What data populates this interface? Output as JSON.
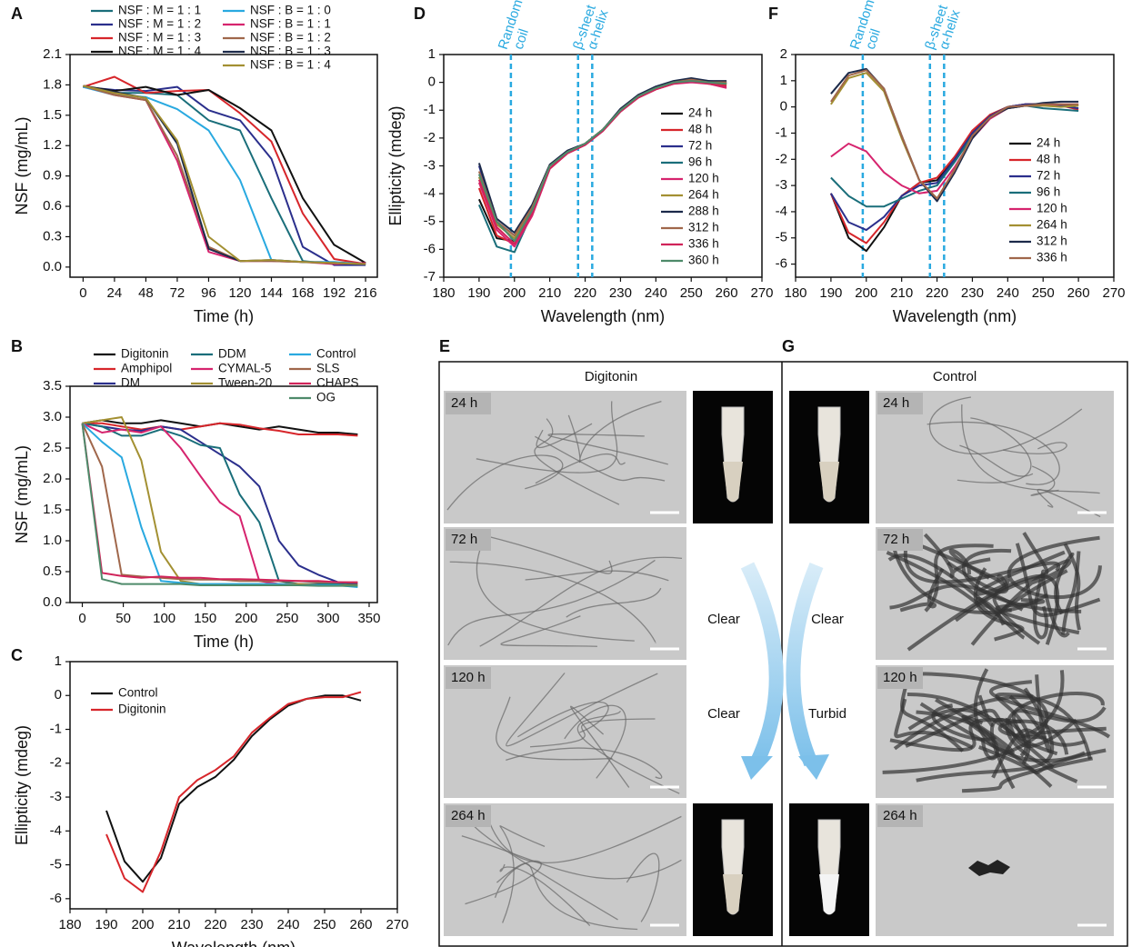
{
  "chart_data": [
    {
      "type": "line",
      "panel": "A",
      "x_label": "Time (h)",
      "y_label": "NSF (mg/mL)",
      "x": [
        0,
        24,
        48,
        72,
        96,
        120,
        144,
        168,
        192,
        216
      ],
      "xlim": [
        -10,
        225
      ],
      "xticks": [
        0,
        24,
        48,
        72,
        96,
        120,
        144,
        168,
        192,
        216
      ],
      "ylim": [
        -0.1,
        2.1
      ],
      "yticks": [
        {
          "value": 0,
          "label": "0.0"
        },
        0.3,
        0.6,
        0.9,
        1.2,
        1.5,
        1.8,
        2.1
      ],
      "series": [
        {
          "name": "NSF : M = 1 : 1",
          "color": "#1a6e7a",
          "values": [
            1.78,
            1.72,
            1.72,
            1.7,
            1.45,
            1.35,
            0.68,
            0.06,
            0.03,
            0.03
          ]
        },
        {
          "name": "NSF : M = 1 : 2",
          "color": "#2b2f8c",
          "values": [
            1.78,
            1.75,
            1.74,
            1.78,
            1.55,
            1.45,
            1.07,
            0.2,
            0.02,
            0.02
          ]
        },
        {
          "name": "NSF : M = 1 : 3",
          "color": "#d7262b",
          "values": [
            1.78,
            1.88,
            1.72,
            1.74,
            1.75,
            1.52,
            1.24,
            0.53,
            0.08,
            0.03
          ]
        },
        {
          "name": "NSF : M = 1 : 4",
          "color": "#111111",
          "values": [
            1.79,
            1.74,
            1.78,
            1.7,
            1.75,
            1.57,
            1.35,
            0.68,
            0.22,
            0.04
          ]
        },
        {
          "name": "NSF : B = 1 : 0",
          "color": "#29a9e0",
          "values": [
            1.78,
            1.7,
            1.68,
            1.56,
            1.35,
            0.86,
            0.07,
            0.05,
            0.05,
            0.03
          ]
        },
        {
          "name": "NSF : B = 1 : 1",
          "color": "#d6246e",
          "values": [
            1.79,
            1.7,
            1.65,
            1.05,
            0.15,
            0.06,
            0.06,
            0.05,
            0.03,
            0.04
          ]
        },
        {
          "name": "NSF : B = 1 : 2",
          "color": "#a0674b",
          "values": [
            1.79,
            1.7,
            1.65,
            1.1,
            0.2,
            0.06,
            0.06,
            0.05,
            0.04,
            0.03
          ]
        },
        {
          "name": "NSF : B = 1 : 3",
          "color": "#1c2a4a",
          "values": [
            1.79,
            1.73,
            1.67,
            1.22,
            0.18,
            0.06,
            0.07,
            0.05,
            0.04,
            0.03
          ]
        },
        {
          "name": "NSF : B = 1 : 4",
          "color": "#a39032",
          "values": [
            1.79,
            1.72,
            1.67,
            1.25,
            0.3,
            0.06,
            0.07,
            0.05,
            0.04,
            0.03
          ]
        }
      ]
    },
    {
      "type": "line",
      "panel": "B",
      "x_label": "Time (h)",
      "y_label": "NSF (mg/mL)",
      "x": [
        0,
        24,
        48,
        72,
        96,
        120,
        144,
        168,
        192,
        216,
        240,
        264,
        288,
        312,
        336
      ],
      "xlim": [
        -15,
        360
      ],
      "xticks": [
        0,
        50,
        100,
        150,
        200,
        250,
        300,
        350
      ],
      "ylim": [
        0,
        3.5
      ],
      "yticks": [
        {
          "value": 0,
          "label": "0.0"
        },
        0.5,
        {
          "value": 1,
          "label": "1.0"
        },
        1.5,
        {
          "value": 2,
          "label": "2.0"
        },
        2.5,
        {
          "value": 3,
          "label": "3.0"
        },
        3.5
      ],
      "series": [
        {
          "name": "Digitonin",
          "color": "#111111",
          "values": [
            2.9,
            2.95,
            2.9,
            2.9,
            2.95,
            2.9,
            2.85,
            2.9,
            2.85,
            2.8,
            2.85,
            2.8,
            2.75,
            2.75,
            2.72
          ]
        },
        {
          "name": "Amphipol",
          "color": "#d7262b",
          "values": [
            2.9,
            2.9,
            2.85,
            2.8,
            2.85,
            2.8,
            2.85,
            2.9,
            2.88,
            2.82,
            2.78,
            2.72,
            2.72,
            2.72,
            2.7
          ]
        },
        {
          "name": "DM",
          "color": "#2b2f8c",
          "values": [
            2.9,
            2.85,
            2.8,
            2.78,
            2.85,
            2.8,
            2.6,
            2.4,
            2.2,
            1.88,
            1.0,
            0.6,
            0.45,
            0.33,
            0.3
          ]
        },
        {
          "name": "DDM",
          "color": "#1a6e7a",
          "values": [
            2.9,
            2.85,
            2.7,
            2.7,
            2.8,
            2.7,
            2.55,
            2.5,
            1.75,
            1.3,
            0.35,
            0.3,
            0.3,
            0.3,
            0.28
          ]
        },
        {
          "name": "CYMAL-5",
          "color": "#d6246e",
          "values": [
            2.9,
            2.75,
            2.8,
            2.75,
            2.85,
            2.5,
            2.05,
            1.62,
            1.4,
            0.35,
            0.3,
            0.3,
            0.28,
            0.28,
            0.28
          ]
        },
        {
          "name": "Tween-20",
          "color": "#a39032",
          "values": [
            2.9,
            2.95,
            3.0,
            2.3,
            0.82,
            0.35,
            0.3,
            0.3,
            0.3,
            0.3,
            0.3,
            0.3,
            0.28,
            0.28,
            0.28
          ]
        },
        {
          "name": "Control",
          "color": "#29a9e0",
          "values": [
            2.9,
            2.6,
            2.35,
            1.22,
            0.35,
            0.32,
            0.3,
            0.3,
            0.3,
            0.3,
            0.3,
            0.28,
            0.28,
            0.28,
            0.25
          ]
        },
        {
          "name": "SLS",
          "color": "#a0674b",
          "values": [
            2.9,
            2.2,
            0.45,
            0.42,
            0.4,
            0.38,
            0.37,
            0.37,
            0.35,
            0.35,
            0.35,
            0.35,
            0.33,
            0.33,
            0.32
          ]
        },
        {
          "name": "CHAPS",
          "color": "#d0245a",
          "values": [
            2.9,
            0.48,
            0.43,
            0.4,
            0.42,
            0.4,
            0.4,
            0.38,
            0.38,
            0.37,
            0.36,
            0.35,
            0.35,
            0.33,
            0.33
          ]
        },
        {
          "name": "OG",
          "color": "#4e8a6a",
          "values": [
            2.9,
            0.38,
            0.3,
            0.3,
            0.3,
            0.3,
            0.28,
            0.28,
            0.28,
            0.28,
            0.28,
            0.28,
            0.27,
            0.27,
            0.27
          ]
        }
      ]
    },
    {
      "type": "line",
      "panel": "C",
      "x_label": "Wavelength (nm)",
      "y_label": "Ellipticity (mdeg)",
      "x": [
        190,
        195,
        200,
        205,
        210,
        215,
        220,
        225,
        230,
        235,
        240,
        245,
        250,
        255,
        260
      ],
      "xlim": [
        180,
        270
      ],
      "xticks": [
        180,
        190,
        200,
        210,
        220,
        230,
        240,
        250,
        260,
        270
      ],
      "ylim": [
        -6.3,
        1
      ],
      "yticks": [
        -6,
        -5,
        -4,
        -3,
        -2,
        -1,
        0,
        1
      ],
      "series": [
        {
          "name": "Control",
          "color": "#111111",
          "values": [
            -3.4,
            -4.9,
            -5.5,
            -4.8,
            -3.2,
            -2.7,
            -2.4,
            -1.9,
            -1.2,
            -0.7,
            -0.3,
            -0.1,
            0,
            0,
            -0.15
          ]
        },
        {
          "name": "Digitonin",
          "color": "#d7262b",
          "values": [
            -4.1,
            -5.4,
            -5.8,
            -4.6,
            -3.0,
            -2.5,
            -2.2,
            -1.8,
            -1.1,
            -0.65,
            -0.25,
            -0.1,
            -0.05,
            -0.05,
            0.1
          ]
        }
      ]
    },
    {
      "type": "line",
      "panel": "D",
      "x_label": "Wavelength (nm)",
      "y_label": "Ellipticity (mdeg)",
      "x": [
        190,
        195,
        200,
        205,
        210,
        215,
        220,
        225,
        230,
        235,
        240,
        245,
        250,
        255,
        260
      ],
      "xlim": [
        180,
        270
      ],
      "xticks": [
        180,
        190,
        200,
        210,
        220,
        230,
        240,
        250,
        260,
        270
      ],
      "ylim": [
        -7,
        1
      ],
      "yticks": [
        -7,
        -6,
        -5,
        -4,
        -3,
        -2,
        -1,
        0,
        1
      ],
      "markers": [
        {
          "value": 199,
          "label_lines": [
            "Random",
            "coil"
          ]
        },
        {
          "value": 218,
          "label_lines": [
            "β-sheet"
          ]
        },
        {
          "value": 222,
          "label_lines": [
            "α-helix"
          ]
        }
      ],
      "series": [
        {
          "name": "24 h",
          "color": "#111111",
          "values": [
            -4.2,
            -5.6,
            -5.7,
            -4.5,
            -3.0,
            -2.5,
            -2.2,
            -1.7,
            -1.0,
            -0.5,
            -0.2,
            0,
            0.05,
            0,
            -0.05
          ]
        },
        {
          "name": "48 h",
          "color": "#d7262b",
          "values": [
            -3.8,
            -5.5,
            -5.8,
            -4.6,
            -3.0,
            -2.5,
            -2.2,
            -1.7,
            -1.0,
            -0.55,
            -0.25,
            -0.05,
            0.05,
            0,
            -0.1
          ]
        },
        {
          "name": "72 h",
          "color": "#2b2f8c",
          "values": [
            -3.0,
            -5.0,
            -5.5,
            -4.5,
            -3.0,
            -2.5,
            -2.2,
            -1.7,
            -1.0,
            -0.5,
            -0.2,
            0,
            0.1,
            0.05,
            0
          ]
        },
        {
          "name": "96 h",
          "color": "#1a6e7a",
          "values": [
            -4.4,
            -5.9,
            -6.1,
            -4.7,
            -3.0,
            -2.5,
            -2.2,
            -1.7,
            -1.0,
            -0.5,
            -0.2,
            0,
            0.05,
            0,
            0
          ]
        },
        {
          "name": "120 h",
          "color": "#d6246e",
          "values": [
            -3.6,
            -5.3,
            -5.9,
            -4.8,
            -3.1,
            -2.55,
            -2.25,
            -1.75,
            -1.05,
            -0.55,
            -0.25,
            -0.05,
            0,
            -0.05,
            -0.2
          ]
        },
        {
          "name": "264 h",
          "color": "#a39032",
          "values": [
            -3.4,
            -5.1,
            -5.6,
            -4.5,
            -3.0,
            -2.5,
            -2.2,
            -1.7,
            -1.0,
            -0.5,
            -0.2,
            0,
            0.1,
            0,
            -0.05
          ]
        },
        {
          "name": "288 h",
          "color": "#1c2a4a",
          "values": [
            -2.9,
            -4.9,
            -5.4,
            -4.4,
            -2.95,
            -2.45,
            -2.2,
            -1.7,
            -0.95,
            -0.45,
            -0.15,
            0.05,
            0.15,
            0.05,
            0.05
          ]
        },
        {
          "name": "312 h",
          "color": "#a0674b",
          "values": [
            -3.2,
            -5.0,
            -5.5,
            -4.5,
            -3.0,
            -2.5,
            -2.2,
            -1.7,
            -1.0,
            -0.5,
            -0.2,
            0,
            0.1,
            0,
            0
          ]
        },
        {
          "name": "336 h",
          "color": "#d0245a",
          "values": [
            -3.5,
            -5.2,
            -5.8,
            -4.7,
            -3.1,
            -2.55,
            -2.25,
            -1.75,
            -1.05,
            -0.55,
            -0.25,
            -0.05,
            0.05,
            -0.05,
            -0.15
          ]
        },
        {
          "name": "360 h",
          "color": "#4e8a6a",
          "values": [
            -3.3,
            -5.0,
            -5.7,
            -4.6,
            -3.0,
            -2.5,
            -2.2,
            -1.7,
            -1.0,
            -0.5,
            -0.2,
            0,
            0.05,
            0,
            -0.05
          ]
        }
      ]
    },
    {
      "type": "line",
      "panel": "F",
      "x_label": "Wavelength (nm)",
      "y_label": "",
      "x": [
        190,
        195,
        200,
        205,
        210,
        215,
        220,
        225,
        230,
        235,
        240,
        245,
        250,
        255,
        260
      ],
      "xlim": [
        180,
        270
      ],
      "xticks": [
        180,
        190,
        200,
        210,
        220,
        230,
        240,
        250,
        260,
        270
      ],
      "ylim": [
        -6.5,
        2
      ],
      "yticks": [
        -6,
        -5,
        -4,
        -3,
        -2,
        -1,
        0,
        1,
        2
      ],
      "markers": [
        {
          "value": 199,
          "label_lines": [
            "Random",
            "coil"
          ]
        },
        {
          "value": 218,
          "label_lines": [
            "β-sheet"
          ]
        },
        {
          "value": 222,
          "label_lines": [
            "α-helix"
          ]
        }
      ],
      "series": [
        {
          "name": "24 h",
          "color": "#111111",
          "values": [
            -3.3,
            -5.0,
            -5.5,
            -4.6,
            -3.4,
            -2.9,
            -2.8,
            -2.0,
            -1.0,
            -0.3,
            0,
            0.1,
            0.1,
            0.1,
            0.05
          ]
        },
        {
          "name": "48 h",
          "color": "#d7262b",
          "values": [
            -3.3,
            -4.8,
            -5.2,
            -4.4,
            -3.4,
            -2.9,
            -2.7,
            -1.9,
            -0.9,
            -0.3,
            0,
            0.1,
            0.1,
            0.05,
            -0.1
          ]
        },
        {
          "name": "72 h",
          "color": "#2b2f8c",
          "values": [
            -3.3,
            -4.4,
            -4.7,
            -4.2,
            -3.4,
            -3.0,
            -2.9,
            -2.0,
            -1.0,
            -0.35,
            0,
            0.1,
            0.1,
            0.05,
            -0.05
          ]
        },
        {
          "name": "96 h",
          "color": "#1a6e7a",
          "values": [
            -2.7,
            -3.4,
            -3.8,
            -3.8,
            -3.5,
            -3.2,
            -3.0,
            -2.1,
            -1.1,
            -0.4,
            -0.05,
            0.05,
            -0.05,
            -0.1,
            -0.15
          ]
        },
        {
          "name": "120 h",
          "color": "#d6246e",
          "values": [
            -1.9,
            -1.4,
            -1.7,
            -2.5,
            -3.0,
            -3.3,
            -3.2,
            -2.3,
            -1.2,
            -0.45,
            -0.05,
            0.05,
            0.05,
            0.1,
            0.1
          ]
        },
        {
          "name": "264 h",
          "color": "#a39032",
          "values": [
            0.1,
            1.1,
            1.3,
            0.6,
            -1.2,
            -2.8,
            -3.5,
            -2.4,
            -1.1,
            -0.4,
            -0.05,
            0.05,
            0.05,
            0,
            0.05
          ]
        },
        {
          "name": "312 h",
          "color": "#1c2a4a",
          "values": [
            0.5,
            1.3,
            1.45,
            0.7,
            -1.1,
            -2.8,
            -3.6,
            -2.5,
            -1.2,
            -0.4,
            -0.05,
            0.05,
            0.15,
            0.2,
            0.2
          ]
        },
        {
          "name": "336 h",
          "color": "#a0674b",
          "values": [
            0.2,
            1.2,
            1.4,
            0.7,
            -1.1,
            -2.8,
            -3.5,
            -2.4,
            -1.1,
            -0.4,
            0,
            0.05,
            0.1,
            0.1,
            0.1
          ]
        }
      ]
    }
  ],
  "tem": [
    {
      "panel": "E",
      "title": "Digitonin",
      "times": [
        "24 h",
        "72 h",
        "120 h",
        "264 h"
      ],
      "notes": [
        "Clear",
        "Clear"
      ]
    },
    {
      "panel": "G",
      "title": "Control",
      "times": [
        "24 h",
        "72 h",
        "120 h",
        "264 h"
      ],
      "notes": [
        "Clear",
        "Turbid"
      ]
    }
  ]
}
